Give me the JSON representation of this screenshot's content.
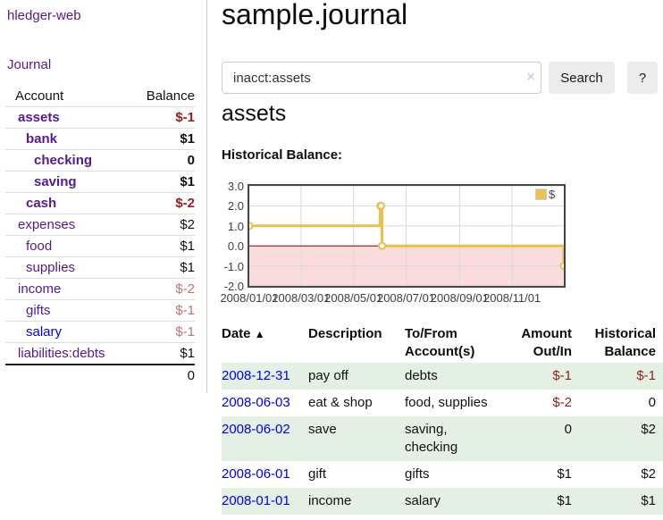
{
  "sidebar": {
    "app_title": "hledger-web",
    "journal_label": "Journal",
    "table": {
      "account_header": "Account",
      "balance_header": "Balance",
      "rows": [
        {
          "account": "assets",
          "balance": "$-1"
        },
        {
          "account": "bank",
          "balance": "$1"
        },
        {
          "account": "checking",
          "balance": "0"
        },
        {
          "account": "saving",
          "balance": "$1"
        },
        {
          "account": "cash",
          "balance": "$-2"
        },
        {
          "account": "expenses",
          "balance": "$2"
        },
        {
          "account": "food",
          "balance": "$1"
        },
        {
          "account": "supplies",
          "balance": "$1"
        },
        {
          "account": "income",
          "balance": "$-2"
        },
        {
          "account": "gifts",
          "balance": "$-1"
        },
        {
          "account": "salary",
          "balance": "$-1"
        },
        {
          "account": "liabilities:debts",
          "balance": "$1"
        }
      ],
      "total": "0"
    }
  },
  "main": {
    "title": "sample.journal",
    "search": {
      "value": "inacct:assets",
      "clear_icon": "×",
      "button_label": "Search",
      "help_label": "?"
    },
    "account_heading": "assets",
    "chart_label": "Historical Balance:"
  },
  "chart_data": {
    "type": "line",
    "title": "Historical Balance:",
    "step": true,
    "series": [
      {
        "name": "$",
        "points": [
          [
            "2008-01-01",
            1
          ],
          [
            "2008-06-01",
            2
          ],
          [
            "2008-06-02",
            2
          ],
          [
            "2008-06-03",
            0
          ],
          [
            "2008-12-31",
            -1
          ]
        ]
      }
    ],
    "x_range": [
      "2008-01-01",
      "2008-12-31"
    ],
    "xticks": [
      "2008/01/01",
      "2008/03/01",
      "2008/05/01",
      "2008/07/01",
      "2008/09/01",
      "2008/11/01"
    ],
    "yticks": [
      "3.0",
      "2.0",
      "1.0",
      "0.0",
      "-1.0",
      "-2.0"
    ],
    "ylim": [
      -2.0,
      3.0
    ],
    "legend": {
      "label": "$",
      "position": "top-right"
    },
    "grid": true,
    "negative_region_shaded": true
  },
  "register": {
    "sort_indicator": "▲",
    "headers": {
      "date": "Date",
      "description": "Description",
      "accounts": "To/From Account(s)",
      "amount": "Amount Out/In",
      "balance": "Historical Balance"
    },
    "rows": [
      {
        "date": "2008-12-31",
        "description": "pay off",
        "accounts": "debts",
        "amount": "$-1",
        "balance": "$-1"
      },
      {
        "date": "2008-06-03",
        "description": "eat & shop",
        "accounts": "food, supplies",
        "amount": "$-2",
        "balance": "0"
      },
      {
        "date": "2008-06-02",
        "description": "save",
        "accounts": "saving, checking",
        "amount": "0",
        "balance": "$2"
      },
      {
        "date": "2008-06-01",
        "description": "gift",
        "accounts": "gifts",
        "amount": "$1",
        "balance": "$2"
      },
      {
        "date": "2008-01-01",
        "description": "income",
        "accounts": "salary",
        "amount": "$1",
        "balance": "$1"
      }
    ]
  },
  "colors": {
    "link_purple": "#551a8b",
    "link_blue": "#0000e6",
    "negative_bold": "#9b1c1c",
    "negative_dim": "#bf7373",
    "negative_table": "#8f1f1f",
    "row_green": "#e3f0e3",
    "chart_line": "#e8c04a",
    "chart_negative_fill": "#fbdcdc",
    "chart_zero_line": "#8b0000",
    "chart_grid": "#d9d9d9",
    "chart_border": "#454545"
  }
}
